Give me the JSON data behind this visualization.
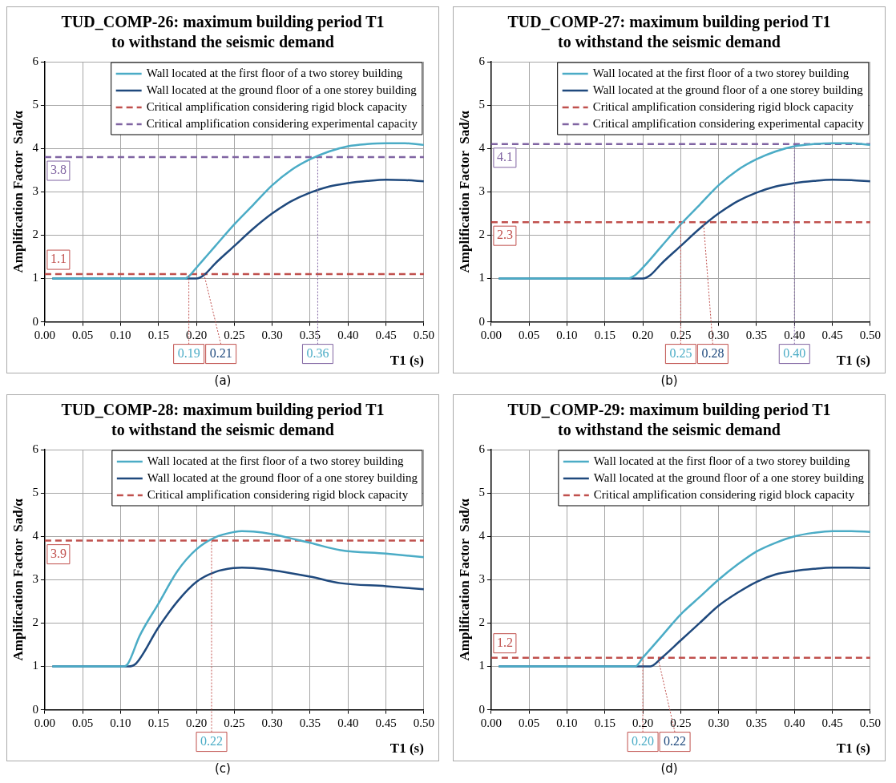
{
  "chart_data": [
    {
      "type": "line",
      "title": "TUD_COMP-26: maximum building period T1 to withstand the seismic demand",
      "xlabel": "T1 (s)",
      "ylabel": "Amplification Factor  Sad/α",
      "xlim": [
        0,
        0.5
      ],
      "xticks": [
        {
          "value": 0,
          "label": "0.00"
        },
        0.05,
        {
          "value": 0.1,
          "label": "0.10"
        },
        0.15,
        {
          "value": 0.2,
          "label": "0.20"
        },
        0.25,
        {
          "value": 0.3,
          "label": "0.30"
        },
        0.35,
        {
          "value": 0.4,
          "label": "0.40"
        },
        0.45,
        {
          "value": 0.5,
          "label": "0.50"
        }
      ],
      "ylim": [
        0,
        6
      ],
      "yticks": [
        0,
        1,
        2,
        3,
        4,
        5,
        6
      ],
      "grid": true,
      "legend": "top right",
      "line_style": "solid",
      "series": [
        {
          "name": "Wall located at the first floor of a two storey building",
          "color": "#4bacc6",
          "x": [
            0.01,
            0.185,
            0.19,
            0.2,
            0.225,
            0.25,
            0.275,
            0.3,
            0.325,
            0.35,
            0.375,
            0.4,
            0.425,
            0.45,
            0.475,
            0.5
          ],
          "values": [
            1,
            1,
            1.05,
            1.25,
            1.75,
            2.25,
            2.7,
            3.15,
            3.5,
            3.75,
            3.93,
            4.05,
            4.1,
            4.12,
            4.12,
            4.08
          ]
        },
        {
          "name": "Wall located at the ground floor of a one storey building",
          "color": "#1f497d",
          "x": [
            0.01,
            0.2,
            0.21,
            0.225,
            0.25,
            0.275,
            0.3,
            0.325,
            0.35,
            0.375,
            0.4,
            0.425,
            0.45,
            0.475,
            0.5
          ],
          "values": [
            1,
            1,
            1.08,
            1.35,
            1.75,
            2.15,
            2.5,
            2.78,
            2.98,
            3.12,
            3.2,
            3.25,
            3.28,
            3.27,
            3.24
          ]
        }
      ],
      "ref_lines": [
        {
          "axis": "y",
          "value": 1.1,
          "label": "Critical amplification considering rigid block capacity",
          "color": "#c0504d",
          "line_style": "dashed"
        },
        {
          "axis": "y",
          "value": 3.8,
          "label": "Critical amplification considering experimental capacity",
          "color": "#8064a2",
          "line_style": "dashed"
        }
      ],
      "annotations": [
        {
          "text": "1.1",
          "y": 1.1
        },
        {
          "text": "3.8",
          "y": 3.8
        },
        {
          "text": "0.19",
          "x": 0.19,
          "y": 1.1
        },
        {
          "text": "0.21",
          "x": 0.21,
          "y": 1.1
        },
        {
          "text": "0.36",
          "x": 0.36,
          "y": 3.8
        },
        "(a)"
      ]
    },
    {
      "type": "line",
      "title": "TUD_COMP-27: maximum building period T1 to withstand the seismic demand",
      "xlabel": "T1 (s)",
      "ylabel": "Amplification Factor  Sad/α",
      "xlim": [
        0,
        0.5
      ],
      "xticks": [
        {
          "value": 0,
          "label": "0.00"
        },
        0.05,
        {
          "value": 0.1,
          "label": "0.10"
        },
        0.15,
        {
          "value": 0.2,
          "label": "0.20"
        },
        0.25,
        {
          "value": 0.3,
          "label": "0.30"
        },
        0.35,
        {
          "value": 0.4,
          "label": "0.40"
        },
        0.45,
        {
          "value": 0.5,
          "label": "0.50"
        }
      ],
      "ylim": [
        0,
        6
      ],
      "yticks": [
        0,
        1,
        2,
        3,
        4,
        5,
        6
      ],
      "grid": true,
      "legend": "top right",
      "line_style": "solid",
      "series": [
        {
          "name": "Wall located at the first floor of a two storey building",
          "color": "#4bacc6",
          "x": [
            0.01,
            0.18,
            0.19,
            0.2,
            0.225,
            0.25,
            0.275,
            0.3,
            0.325,
            0.35,
            0.375,
            0.4,
            0.425,
            0.45,
            0.475,
            0.5
          ],
          "values": [
            1,
            1,
            1.08,
            1.25,
            1.75,
            2.25,
            2.7,
            3.15,
            3.5,
            3.75,
            3.93,
            4.05,
            4.1,
            4.12,
            4.12,
            4.08
          ]
        },
        {
          "name": "Wall located at the ground floor of a one storey building",
          "color": "#1f497d",
          "x": [
            0.01,
            0.2,
            0.21,
            0.225,
            0.25,
            0.275,
            0.3,
            0.325,
            0.35,
            0.375,
            0.4,
            0.425,
            0.45,
            0.475,
            0.5
          ],
          "values": [
            1,
            1,
            1.08,
            1.35,
            1.75,
            2.15,
            2.5,
            2.78,
            2.98,
            3.12,
            3.2,
            3.25,
            3.28,
            3.27,
            3.24
          ]
        }
      ],
      "ref_lines": [
        {
          "axis": "y",
          "value": 2.3,
          "label": "Critical amplification considering rigid block capacity",
          "color": "#c0504d",
          "line_style": "dashed"
        },
        {
          "axis": "y",
          "value": 4.1,
          "label": "Critical amplification considering experimental capacity",
          "color": "#8064a2",
          "line_style": "dashed"
        }
      ],
      "annotations": [
        {
          "text": "2.3",
          "y": 2.3
        },
        {
          "text": "4.1",
          "y": 4.1
        },
        {
          "text": "0.25",
          "x": 0.25,
          "y": 2.3
        },
        {
          "text": "0.28",
          "x": 0.28,
          "y": 2.3
        },
        {
          "text": "0.40",
          "x": 0.4,
          "y": 4.1
        },
        "(b)"
      ]
    },
    {
      "type": "line",
      "title": "TUD_COMP-28: maximum building period T1 to withstand the seismic demand",
      "xlabel": "T1 (s)",
      "ylabel": "Amplification Factor  Sad/α",
      "xlim": [
        0,
        0.5
      ],
      "xticks": [
        {
          "value": 0,
          "label": "0.00"
        },
        0.05,
        {
          "value": 0.1,
          "label": "0.10"
        },
        0.15,
        {
          "value": 0.2,
          "label": "0.20"
        },
        0.25,
        {
          "value": 0.3,
          "label": "0.30"
        },
        0.35,
        {
          "value": 0.4,
          "label": "0.40"
        },
        0.45,
        {
          "value": 0.5,
          "label": "0.50"
        }
      ],
      "ylim": [
        0,
        6
      ],
      "yticks": [
        0,
        1,
        2,
        3,
        4,
        5,
        6
      ],
      "grid": true,
      "legend": "top right",
      "line_style": "solid",
      "series": [
        {
          "name": "Wall located at the first floor of a two storey building",
          "color": "#4bacc6",
          "x": [
            0.01,
            0.105,
            0.11,
            0.125,
            0.15,
            0.175,
            0.2,
            0.225,
            0.25,
            0.26,
            0.275,
            0.3,
            0.325,
            0.35,
            0.39,
            0.45,
            0.5
          ],
          "values": [
            1,
            1,
            1.07,
            1.7,
            2.45,
            3.2,
            3.7,
            3.98,
            4.1,
            4.12,
            4.11,
            4.05,
            3.95,
            3.85,
            3.68,
            3.6,
            3.52
          ]
        },
        {
          "name": "Wall located at the ground floor of a one storey building",
          "color": "#1f497d",
          "x": [
            0.01,
            0.11,
            0.12,
            0.15,
            0.175,
            0.2,
            0.225,
            0.25,
            0.26,
            0.275,
            0.3,
            0.35,
            0.39,
            0.45,
            0.5
          ],
          "values": [
            1,
            1,
            1.06,
            1.9,
            2.5,
            2.95,
            3.18,
            3.27,
            3.28,
            3.27,
            3.22,
            3.07,
            2.92,
            2.85,
            2.78
          ]
        }
      ],
      "ref_lines": [
        {
          "axis": "y",
          "value": 3.9,
          "label": "Critical amplification considering rigid block capacity",
          "color": "#c0504d",
          "line_style": "dashed"
        }
      ],
      "annotations": [
        {
          "text": "3.9",
          "y": 3.9
        },
        {
          "text": "0.22",
          "x": 0.22,
          "y": 3.9
        },
        "(c)"
      ]
    },
    {
      "type": "line",
      "title": "TUD_COMP-29: maximum building period T1 to withstand the seismic demand",
      "xlabel": "T1 (s)",
      "ylabel": "Amplification Factor  Sad/α",
      "xlim": [
        0,
        0.5
      ],
      "xticks": [
        {
          "value": 0,
          "label": "0.00"
        },
        0.05,
        {
          "value": 0.1,
          "label": "0.10"
        },
        0.15,
        {
          "value": 0.2,
          "label": "0.20"
        },
        0.25,
        {
          "value": 0.3,
          "label": "0.30"
        },
        0.35,
        {
          "value": 0.4,
          "label": "0.40"
        },
        0.45,
        {
          "value": 0.5,
          "label": "0.50"
        }
      ],
      "ylim": [
        0,
        6
      ],
      "yticks": [
        0,
        1,
        2,
        3,
        4,
        5,
        6
      ],
      "grid": true,
      "legend": "top right",
      "line_style": "solid",
      "series": [
        {
          "name": "Wall located at the first floor of a two storey building",
          "color": "#4bacc6",
          "x": [
            0.01,
            0.19,
            0.2,
            0.225,
            0.25,
            0.275,
            0.3,
            0.325,
            0.35,
            0.375,
            0.4,
            0.425,
            0.45,
            0.475,
            0.5
          ],
          "values": [
            1,
            1,
            1.2,
            1.7,
            2.2,
            2.6,
            3.0,
            3.35,
            3.65,
            3.85,
            4.0,
            4.08,
            4.12,
            4.12,
            4.1
          ]
        },
        {
          "name": "Wall located at the ground floor of a one storey building",
          "color": "#1f497d",
          "x": [
            0.01,
            0.21,
            0.225,
            0.25,
            0.275,
            0.3,
            0.325,
            0.35,
            0.375,
            0.4,
            0.425,
            0.45,
            0.475,
            0.5
          ],
          "values": [
            1,
            1,
            1.2,
            1.6,
            2.0,
            2.4,
            2.7,
            2.95,
            3.12,
            3.2,
            3.25,
            3.28,
            3.28,
            3.27
          ]
        }
      ],
      "ref_lines": [
        {
          "axis": "y",
          "value": 1.2,
          "label": "Critical amplification considering rigid block capacity",
          "color": "#c0504d",
          "line_style": "dashed"
        }
      ],
      "annotations": [
        {
          "text": "1.2",
          "y": 1.2
        },
        {
          "text": "0.20",
          "x": 0.2,
          "y": 1.2
        },
        {
          "text": "0.22",
          "x": 0.22,
          "y": 1.2
        },
        "(d)"
      ]
    }
  ]
}
